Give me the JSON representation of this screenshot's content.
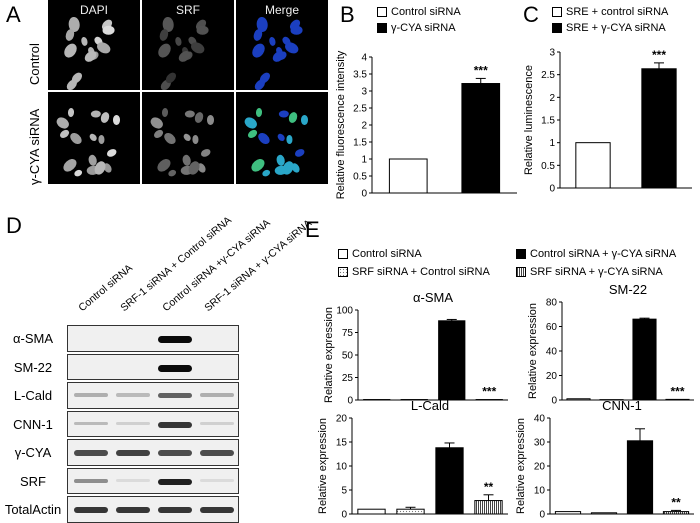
{
  "panels": {
    "A": "A",
    "B": "B",
    "C": "C",
    "D": "D",
    "E": "E"
  },
  "panel_a": {
    "channels": [
      "DAPI",
      "SRF",
      "Merge"
    ],
    "rows": [
      "Control",
      "γ-CYA siRNA"
    ]
  },
  "panel_d": {
    "lanes": [
      "Control siRNA",
      "SRF-1 siRNA + Control siRNA",
      "Control siRNA +γ-CYA siRNA",
      "SRF-1 siRNA + γ-CYA siRNA"
    ],
    "proteins": [
      "α-SMA",
      "SM-22",
      "L-Cald",
      "CNN-1",
      "γ-CYA",
      "SRF",
      "TotalActin"
    ],
    "band_levels": [
      [
        0.0,
        0.0,
        1.0,
        0.0
      ],
      [
        0.0,
        0.0,
        1.0,
        0.0
      ],
      [
        0.25,
        0.2,
        0.6,
        0.25
      ],
      [
        0.2,
        0.1,
        0.8,
        0.1
      ],
      [
        0.7,
        0.75,
        0.7,
        0.7
      ],
      [
        0.4,
        0.05,
        0.9,
        0.05
      ],
      [
        0.8,
        0.8,
        0.8,
        0.8
      ]
    ]
  },
  "chart_data": [
    {
      "type": "bar",
      "panel": "B",
      "legend": [
        "Control siRNA",
        "γ-CYA siRNA"
      ],
      "categories": [
        "Control siRNA",
        "γ-CYA siRNA"
      ],
      "values": [
        1.0,
        3.22
      ],
      "errors": [
        0,
        0.15
      ],
      "ylabel": "Relative fluorescence  intensity",
      "ylim": [
        0,
        4
      ],
      "yticks": [
        "0",
        "0.5",
        "1",
        "1.5",
        "2",
        "2.5",
        "3",
        "3.5",
        "4"
      ],
      "annotation": "***",
      "colors": [
        "#ffffff",
        "#000000"
      ]
    },
    {
      "type": "bar",
      "panel": "C",
      "legend": [
        "SRE + control siRNA",
        "SRE + γ-CYA siRNA"
      ],
      "categories": [
        "SRE + control siRNA",
        "SRE + γ-CYA siRNA"
      ],
      "values": [
        1.0,
        2.63
      ],
      "errors": [
        0,
        0.13
      ],
      "ylabel": "Relative luminescence",
      "ylim": [
        0,
        3
      ],
      "yticks": [
        "0",
        "0.5",
        "1",
        "1.5",
        "2",
        "2.5",
        "3"
      ],
      "annotation": "***",
      "colors": [
        "#ffffff",
        "#000000"
      ]
    },
    {
      "type": "bar",
      "panel": "E",
      "legend": [
        "Control siRNA",
        "Control siRNA + γ-CYA siRNA",
        "SRF siRNA + Control siRNA",
        "SRF siRNA  +  γ-CYA siRNA"
      ],
      "subplots": [
        {
          "title": "α-SMA",
          "ylabel": "Relative expression",
          "ylim": [
            0,
            100
          ],
          "yticks": [
            "0",
            "25",
            "50",
            "75",
            "100"
          ],
          "values": [
            0.5,
            0.5,
            88,
            0.5
          ],
          "errors": [
            0,
            0,
            1.5,
            0
          ],
          "annotation": "***"
        },
        {
          "title": "SM-22",
          "ylabel": "Relative expression",
          "ylim": [
            0,
            80
          ],
          "yticks": [
            "0",
            "20",
            "40",
            "60",
            "80"
          ],
          "values": [
            1,
            0.3,
            66,
            0.5
          ],
          "errors": [
            0,
            0,
            0.8,
            0
          ],
          "annotation": "***"
        },
        {
          "title": "L-Cald",
          "ylabel": "Relative expression",
          "ylim": [
            0,
            20
          ],
          "yticks": [
            "0",
            "5",
            "10",
            "15",
            "20"
          ],
          "values": [
            1,
            1,
            13.8,
            2.8
          ],
          "errors": [
            0,
            0.4,
            1,
            1.2
          ],
          "annotation": "**"
        },
        {
          "title": "CNN-1",
          "ylabel": "Relative expression",
          "ylim": [
            0,
            40
          ],
          "yticks": [
            "0",
            "10",
            "20",
            "30",
            "40"
          ],
          "values": [
            1,
            0.5,
            30.5,
            1
          ],
          "errors": [
            0,
            0,
            5,
            0.5
          ],
          "annotation": "**"
        }
      ]
    }
  ],
  "colors": {
    "blue": "#1b3fc0",
    "cyan": "#2aa7c9",
    "green": "#3fbf80"
  }
}
